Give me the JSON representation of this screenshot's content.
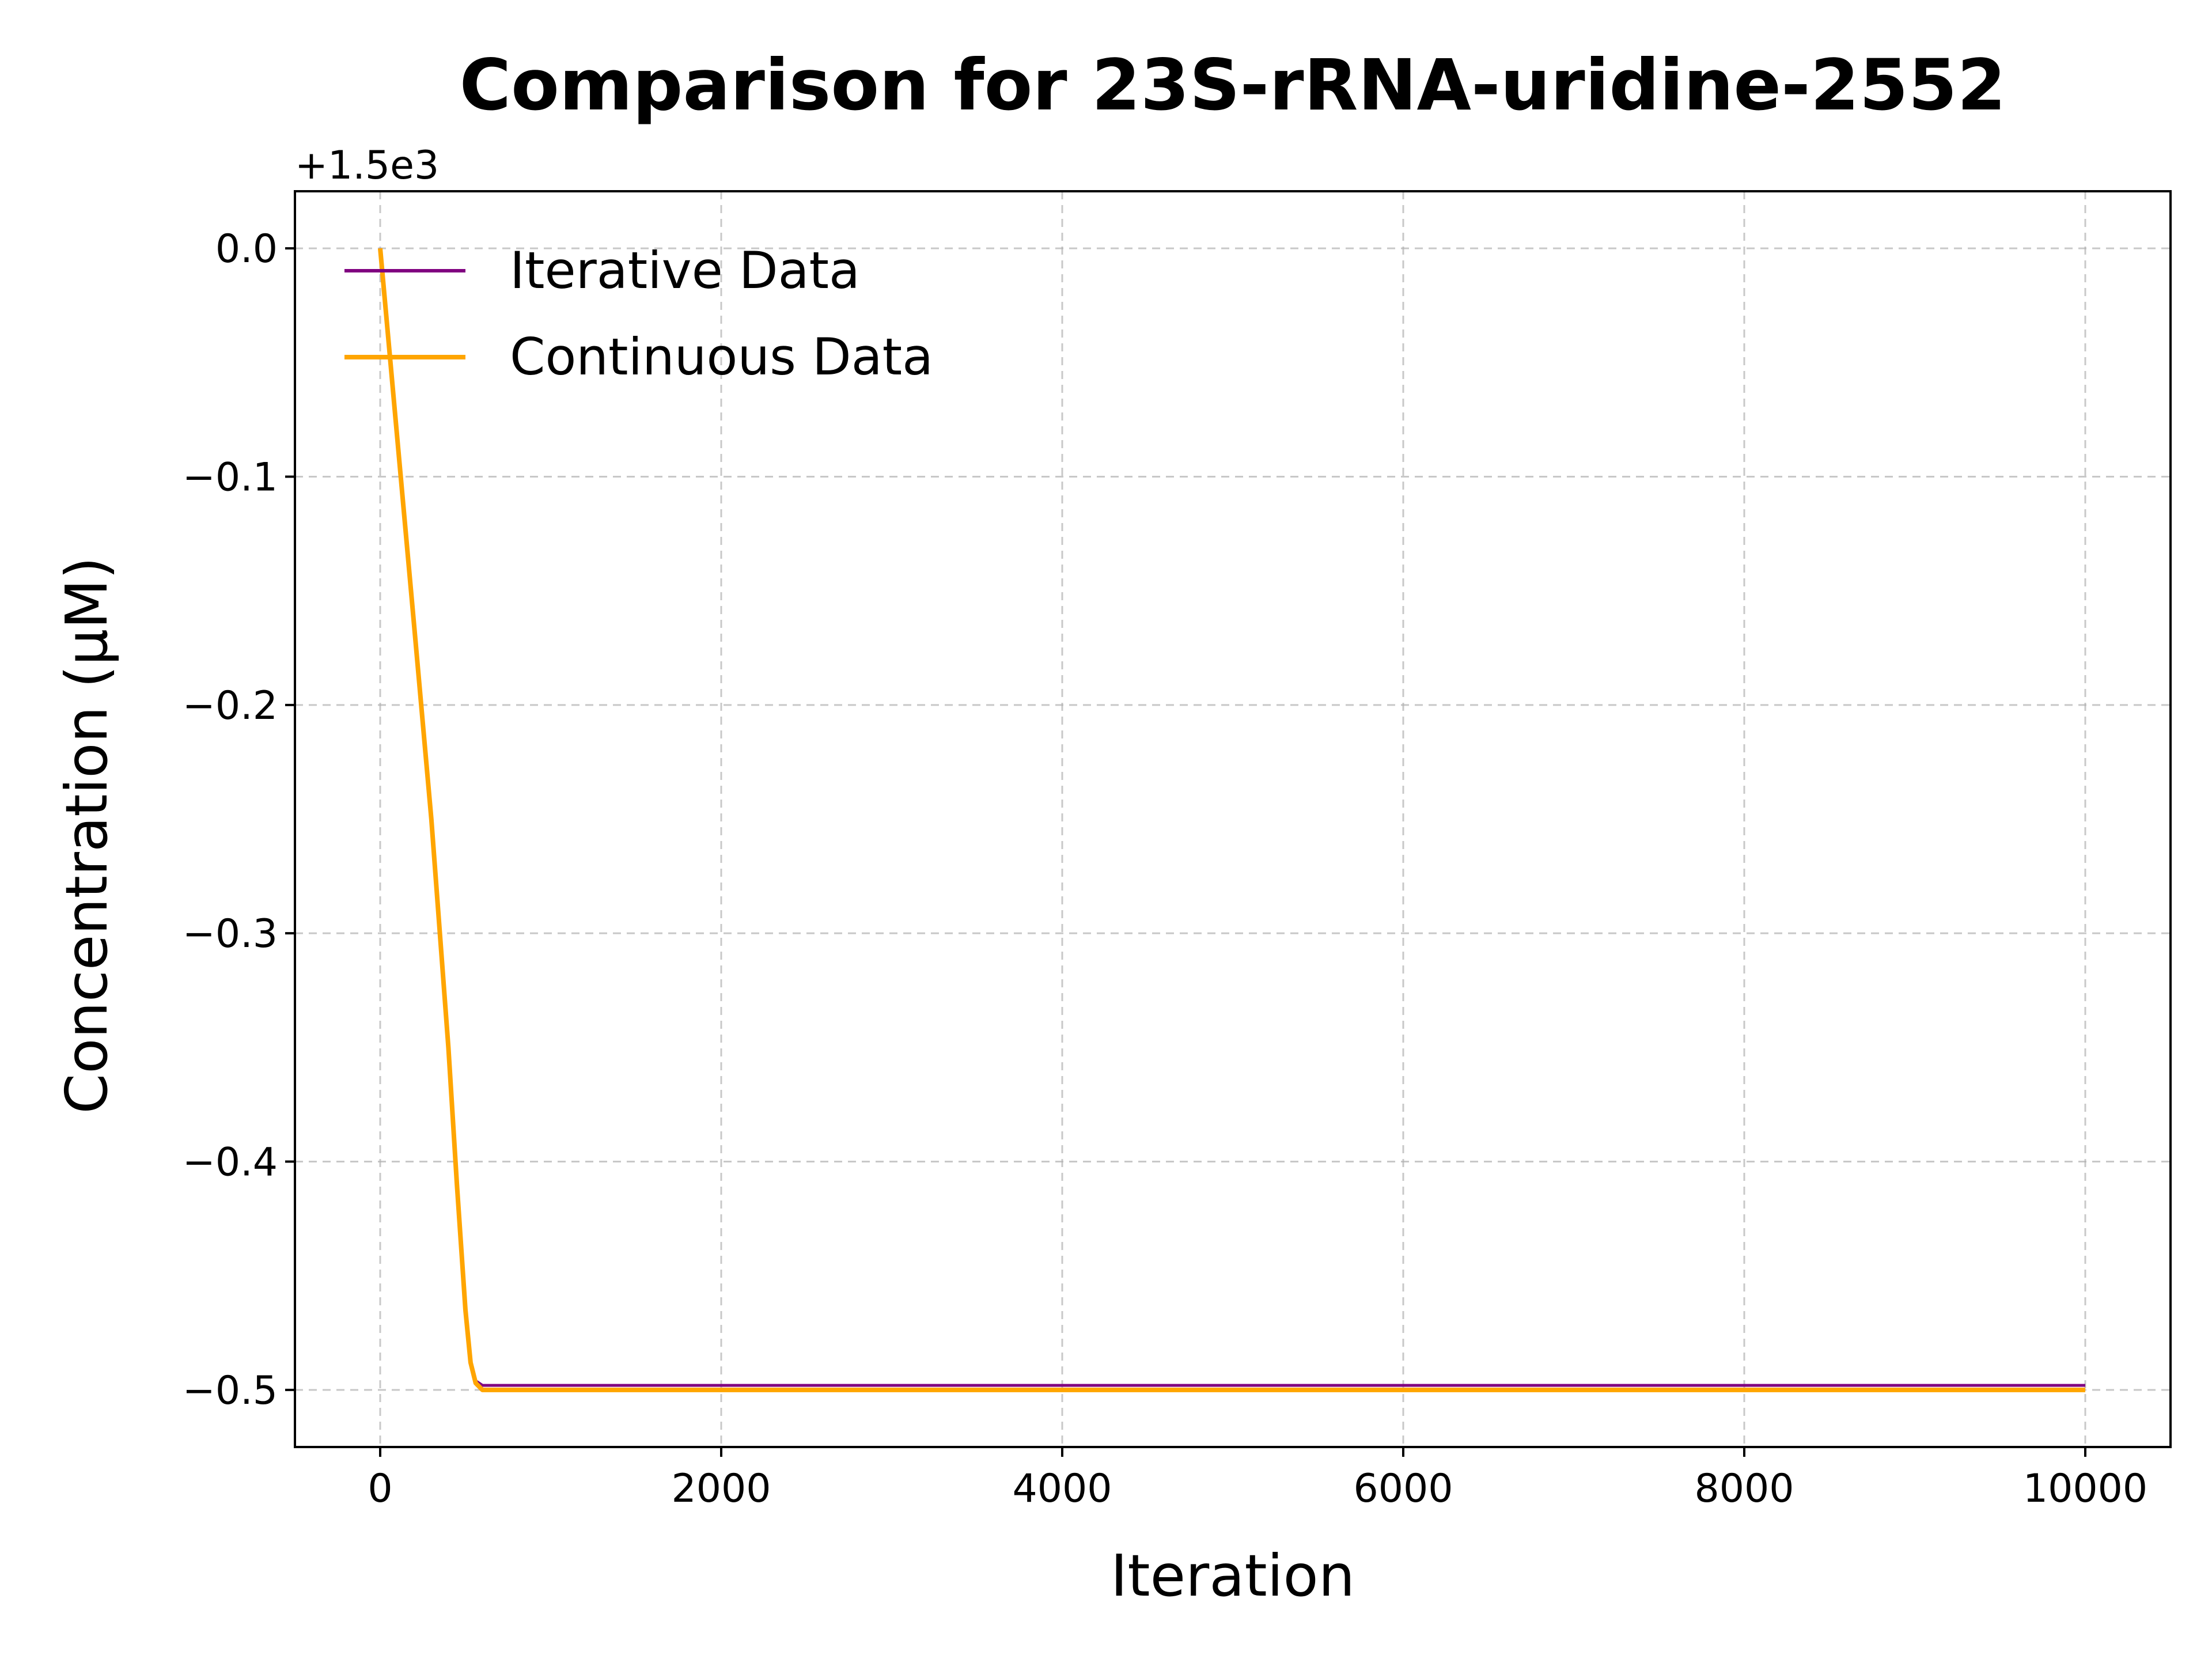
{
  "chart_data": {
    "type": "line",
    "title": "Comparison for 23S-rRNA-uridine-2552",
    "xlabel": "Iteration",
    "ylabel": "Concentration (μM)",
    "offset_text": "+1.5e3",
    "y_offset": 1500,
    "xlim": [
      -500,
      10500
    ],
    "ylim": [
      -0.525,
      0.025
    ],
    "xticks": [
      0,
      2000,
      4000,
      6000,
      8000,
      10000
    ],
    "xtick_labels": [
      "0",
      "2000",
      "4000",
      "6000",
      "8000",
      "10000"
    ],
    "yticks": [
      0.0,
      -0.1,
      -0.2,
      -0.3,
      -0.4,
      -0.5
    ],
    "ytick_labels": [
      "0.0",
      "−0.1",
      "−0.2",
      "−0.3",
      "−0.4",
      "−0.5"
    ],
    "grid": true,
    "legend_position": "top-left",
    "series": [
      {
        "name": "Iterative Data",
        "color": "#800080",
        "x": [
          0,
          100,
          200,
          300,
          400,
          450,
          500,
          530,
          560,
          600,
          700,
          1000,
          10000
        ],
        "y": [
          0.0,
          -0.083,
          -0.166,
          -0.25,
          -0.35,
          -0.41,
          -0.465,
          -0.488,
          -0.496,
          -0.498,
          -0.498,
          -0.498,
          -0.498
        ]
      },
      {
        "name": "Continuous Data",
        "color": "#FFA500",
        "x": [
          0,
          100,
          200,
          300,
          400,
          450,
          500,
          530,
          560,
          600,
          700,
          1000,
          10000
        ],
        "y": [
          0.0,
          -0.083,
          -0.166,
          -0.25,
          -0.35,
          -0.41,
          -0.465,
          -0.488,
          -0.497,
          -0.5,
          -0.5,
          -0.5,
          -0.5
        ]
      }
    ]
  }
}
